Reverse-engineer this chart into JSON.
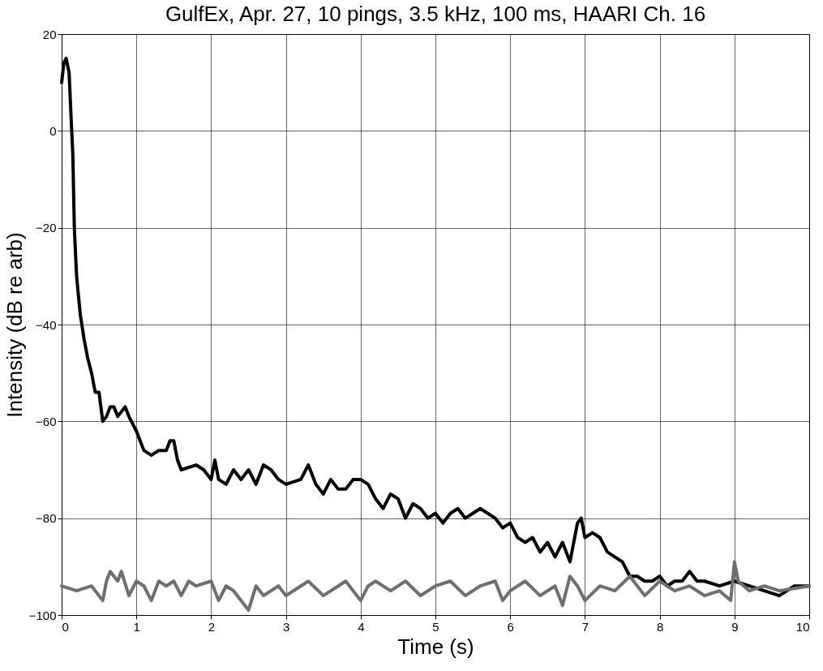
{
  "chart_data": {
    "type": "line",
    "title": "GulfEx, Apr. 27, 10 pings, 3.5 kHz, 100 ms, HAARI Ch. 16",
    "xlabel": "Time (s)",
    "ylabel": "Intensity (dB re arb)",
    "xlim": [
      0,
      10
    ],
    "xticks": [
      0,
      1,
      2,
      3,
      4,
      5,
      6,
      7,
      8,
      9,
      10
    ],
    "ylim": [
      -100,
      20
    ],
    "yticks": [
      -100,
      -80,
      -60,
      -40,
      -20,
      0,
      20
    ],
    "grid": true,
    "marker": "none",
    "line_style": "solid",
    "series": [
      {
        "color": "#000000",
        "x": [
          0.0,
          0.03,
          0.06,
          0.1,
          0.12,
          0.15,
          0.17,
          0.2,
          0.25,
          0.3,
          0.35,
          0.4,
          0.45,
          0.5,
          0.55,
          0.6,
          0.65,
          0.7,
          0.75,
          0.8,
          0.85,
          0.9,
          1.0,
          1.1,
          1.2,
          1.3,
          1.4,
          1.45,
          1.5,
          1.55,
          1.6,
          1.8,
          1.9,
          2.0,
          2.05,
          2.1,
          2.2,
          2.3,
          2.4,
          2.5,
          2.6,
          2.7,
          2.8,
          2.9,
          3.0,
          3.2,
          3.3,
          3.4,
          3.5,
          3.6,
          3.7,
          3.8,
          3.9,
          4.0,
          4.1,
          4.2,
          4.3,
          4.4,
          4.5,
          4.6,
          4.7,
          4.8,
          4.9,
          5.0,
          5.1,
          5.2,
          5.3,
          5.4,
          5.5,
          5.6,
          5.7,
          5.8,
          5.9,
          6.0,
          6.1,
          6.2,
          6.3,
          6.4,
          6.5,
          6.6,
          6.7,
          6.8,
          6.9,
          6.95,
          7.0,
          7.1,
          7.2,
          7.3,
          7.4,
          7.5,
          7.6,
          7.7,
          7.8,
          7.9,
          8.0,
          8.1,
          8.2,
          8.3,
          8.4,
          8.5,
          8.6,
          8.8,
          9.0,
          9.2,
          9.4,
          9.6,
          9.8,
          10.0
        ],
        "values": [
          10,
          14,
          15,
          12,
          5,
          -5,
          -20,
          -30,
          -38,
          -43,
          -47,
          -50,
          -54,
          -54,
          -60,
          -59,
          -57,
          -57,
          -59,
          -58,
          -57,
          -59,
          -62,
          -66,
          -67,
          -66,
          -66,
          -64,
          -64,
          -68,
          -70,
          -69,
          -70,
          -72,
          -68,
          -72,
          -73,
          -70,
          -72,
          -70,
          -73,
          -69,
          -70,
          -72,
          -73,
          -72,
          -69,
          -73,
          -75,
          -72,
          -74,
          -74,
          -72,
          -72,
          -73,
          -76,
          -78,
          -75,
          -76,
          -80,
          -77,
          -78,
          -80,
          -79,
          -81,
          -79,
          -78,
          -80,
          -79,
          -78,
          -79,
          -80,
          -82,
          -81,
          -84,
          -85,
          -84,
          -87,
          -85,
          -88,
          -85,
          -89,
          -81,
          -80,
          -84,
          -83,
          -84,
          -87,
          -88,
          -89,
          -92,
          -92,
          -93,
          -93,
          -92,
          -94,
          -93,
          -93,
          -91,
          -93,
          -93,
          -94,
          -93,
          -94,
          -95,
          -96,
          -94,
          -94
        ]
      },
      {
        "color": "#6e6e6e",
        "x": [
          0.0,
          0.2,
          0.4,
          0.55,
          0.6,
          0.65,
          0.75,
          0.8,
          0.9,
          1.0,
          1.1,
          1.2,
          1.3,
          1.4,
          1.5,
          1.6,
          1.7,
          1.8,
          2.0,
          2.1,
          2.2,
          2.3,
          2.5,
          2.6,
          2.7,
          2.9,
          3.0,
          3.2,
          3.3,
          3.5,
          3.7,
          3.8,
          4.0,
          4.1,
          4.2,
          4.4,
          4.6,
          4.8,
          5.0,
          5.2,
          5.4,
          5.6,
          5.8,
          5.9,
          6.0,
          6.2,
          6.4,
          6.6,
          6.7,
          6.8,
          6.9,
          7.0,
          7.2,
          7.4,
          7.6,
          7.8,
          8.0,
          8.2,
          8.4,
          8.6,
          8.8,
          8.95,
          9.0,
          9.05,
          9.2,
          9.4,
          9.6,
          10.0
        ],
        "values": [
          -94,
          -95,
          -94,
          -97,
          -93,
          -91,
          -93,
          -91,
          -96,
          -93,
          -94,
          -97,
          -93,
          -94,
          -93,
          -96,
          -93,
          -94,
          -93,
          -97,
          -94,
          -95,
          -99,
          -94,
          -96,
          -94,
          -96,
          -94,
          -93,
          -96,
          -94,
          -93,
          -97,
          -94,
          -93,
          -95,
          -93,
          -96,
          -94,
          -93,
          -96,
          -94,
          -93,
          -97,
          -95,
          -93,
          -96,
          -94,
          -98,
          -92,
          -94,
          -97,
          -94,
          -95,
          -92,
          -96,
          -93,
          -95,
          -94,
          -96,
          -95,
          -97,
          -89,
          -93,
          -95,
          -94,
          -95,
          -94
        ]
      }
    ]
  }
}
